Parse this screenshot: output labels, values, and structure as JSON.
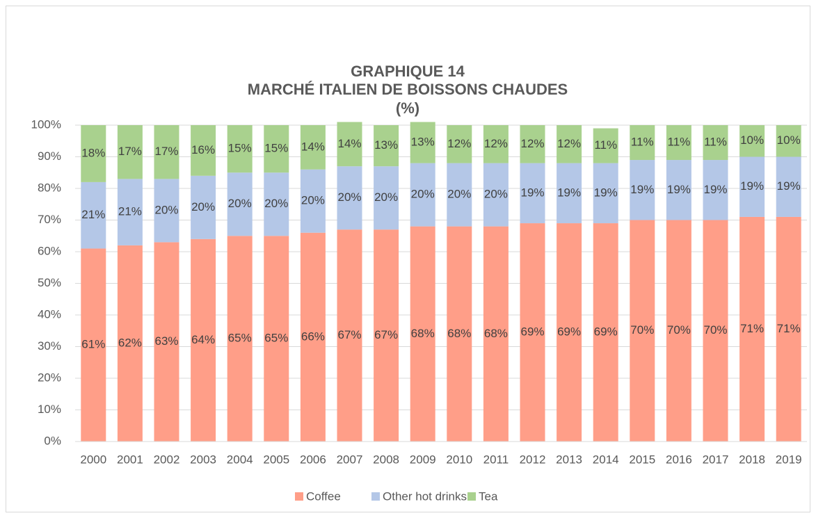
{
  "chart_data": {
    "type": "stacked_bar",
    "title": [
      "GRAPHIQUE 14",
      "MARCHÉ ITALIEN DE BOISSONS CHAUDES",
      "(%)"
    ],
    "categories": [
      "2000",
      "2001",
      "2002",
      "2003",
      "2004",
      "2005",
      "2006",
      "2007",
      "2008",
      "2009",
      "2010",
      "2011",
      "2012",
      "2013",
      "2014",
      "2015",
      "2016",
      "2017",
      "2018",
      "2019"
    ],
    "series": [
      {
        "name": "Coffee",
        "color": "#ff9e88",
        "values": [
          61,
          62,
          63,
          64,
          65,
          65,
          66,
          67,
          67,
          68,
          68,
          68,
          69,
          69,
          69,
          70,
          70,
          70,
          71,
          71
        ],
        "value_labels": [
          "61%",
          "62%",
          "63%",
          "64%",
          "65%",
          "65%",
          "66%",
          "67%",
          "67%",
          "68%",
          "68%",
          "68%",
          "69%",
          "69%",
          "69%",
          "70%",
          "70%",
          "70%",
          "71%",
          "71%"
        ]
      },
      {
        "name": "Other hot drinks",
        "color": "#b4c7e7",
        "values": [
          21,
          21,
          20,
          20,
          20,
          20,
          20,
          20,
          20,
          20,
          20,
          20,
          19,
          19,
          19,
          19,
          19,
          19,
          19,
          19
        ],
        "value_labels": [
          "21%",
          "21%",
          "20%",
          "20%",
          "20%",
          "20%",
          "20%",
          "20%",
          "20%",
          "20%",
          "20%",
          "20%",
          "19%",
          "19%",
          "19%",
          "19%",
          "19%",
          "19%",
          "19%",
          "19%"
        ]
      },
      {
        "name": "Tea",
        "color": "#a9d18e",
        "values": [
          18,
          17,
          17,
          16,
          15,
          15,
          14,
          14,
          13,
          13,
          12,
          12,
          12,
          12,
          11,
          11,
          11,
          11,
          10,
          10
        ],
        "value_labels": [
          "18%",
          "17%",
          "17%",
          "16%",
          "15%",
          "15%",
          "14%",
          "14%",
          "13%",
          "13%",
          "12%",
          "12%",
          "12%",
          "12%",
          "11%",
          "11%",
          "11%",
          "11%",
          "10%",
          "10%"
        ]
      }
    ],
    "ylim": [
      0,
      100
    ],
    "yticks": [
      {
        "value": 0,
        "label": "0%"
      },
      {
        "value": 10,
        "label": "10%"
      },
      {
        "value": 20,
        "label": "20%"
      },
      {
        "value": 30,
        "label": "30%"
      },
      {
        "value": 40,
        "label": "40%"
      },
      {
        "value": 50,
        "label": "50%"
      },
      {
        "value": 60,
        "label": "60%"
      },
      {
        "value": 70,
        "label": "70%"
      },
      {
        "value": 80,
        "label": "80%"
      },
      {
        "value": 90,
        "label": "90%"
      },
      {
        "value": 100,
        "label": "100%"
      }
    ],
    "grid": true
  }
}
